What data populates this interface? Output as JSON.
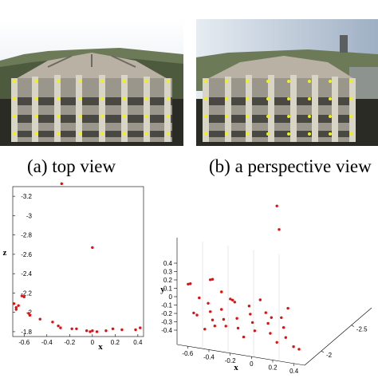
{
  "captions": {
    "top_view": "(a) top view",
    "perspective_view": "(b) a perspective view"
  },
  "colors": {
    "feature_points": "#f2f20a",
    "data_points": "#e01010"
  },
  "chart_data": [
    {
      "type": "scatter",
      "title": "",
      "xlabel": "x",
      "ylabel": "z",
      "xlim": [
        -0.7,
        0.45
      ],
      "ylim": [
        -3.3,
        -1.75
      ],
      "y_inverted": true,
      "x_ticks": [
        "-0.6",
        "-0.4",
        "-0.2",
        "0",
        "0.2",
        "0.4"
      ],
      "y_ticks": [
        "-3.2",
        "-3",
        "-2.8",
        "-2.6",
        "-2.4",
        "-2.2",
        "-2",
        "-1.8"
      ],
      "points": [
        {
          "x": -0.27,
          "y": -3.33
        },
        {
          "x": 0.0,
          "y": -2.67
        },
        {
          "x": -0.62,
          "y": -2.17
        },
        {
          "x": -0.6,
          "y": -2.16
        },
        {
          "x": -0.69,
          "y": -2.09
        },
        {
          "x": -0.67,
          "y": -2.05
        },
        {
          "x": -0.65,
          "y": -2.07
        },
        {
          "x": -0.67,
          "y": -2.03
        },
        {
          "x": -0.56,
          "y": -1.99
        },
        {
          "x": -0.55,
          "y": -1.97
        },
        {
          "x": -0.46,
          "y": -1.93
        },
        {
          "x": -0.35,
          "y": -1.9
        },
        {
          "x": -0.3,
          "y": -1.86
        },
        {
          "x": -0.28,
          "y": -1.84
        },
        {
          "x": -0.18,
          "y": -1.83
        },
        {
          "x": -0.14,
          "y": -1.83
        },
        {
          "x": -0.05,
          "y": -1.81
        },
        {
          "x": -0.02,
          "y": -1.8
        },
        {
          "x": 0.0,
          "y": -1.81
        },
        {
          "x": 0.04,
          "y": -1.8
        },
        {
          "x": 0.12,
          "y": -1.81
        },
        {
          "x": 0.18,
          "y": -1.83
        },
        {
          "x": 0.26,
          "y": -1.82
        },
        {
          "x": 0.38,
          "y": -1.82
        },
        {
          "x": 0.42,
          "y": -1.84
        }
      ]
    },
    {
      "type": "scatter",
      "title": "",
      "xlabel": "x",
      "ylabel": "y",
      "zlabel": "z",
      "projection": "3d",
      "x_ticks": [
        "-0.6",
        "-0.4",
        "-0.2",
        "0",
        "0.2",
        "0.4"
      ],
      "y_ticks": [
        "-0.4",
        "-0.3",
        "-0.2",
        "-0.1",
        "0",
        "0.1",
        "0.2",
        "0.3",
        "0.4"
      ],
      "z_ticks": [
        "-2",
        "-2.5"
      ],
      "point_count": 40
    }
  ]
}
